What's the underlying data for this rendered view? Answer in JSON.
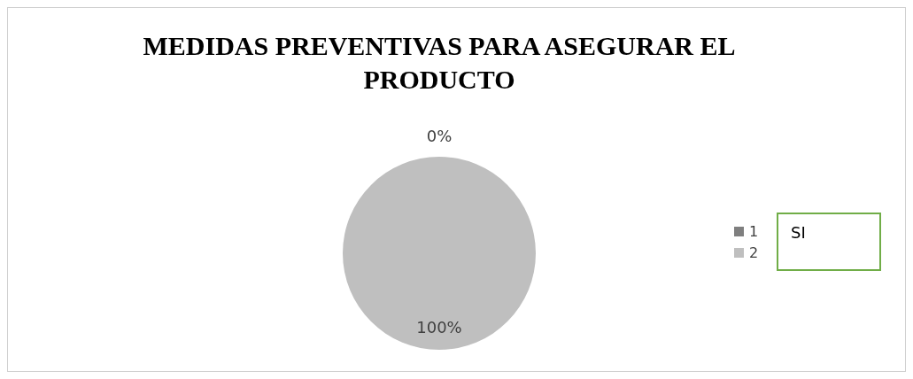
{
  "chart_data": {
    "type": "pie",
    "title": "MEDIDAS PREVENTIVAS PARA ASEGURAR EL PRODUCTO",
    "categories": [
      "1",
      "2"
    ],
    "values": [
      0,
      100
    ],
    "colors": [
      "#7f7f7f",
      "#bfbfbf"
    ],
    "value_labels": [
      "0%",
      "100%"
    ],
    "legend": "right",
    "annotations": [
      "SI"
    ]
  }
}
